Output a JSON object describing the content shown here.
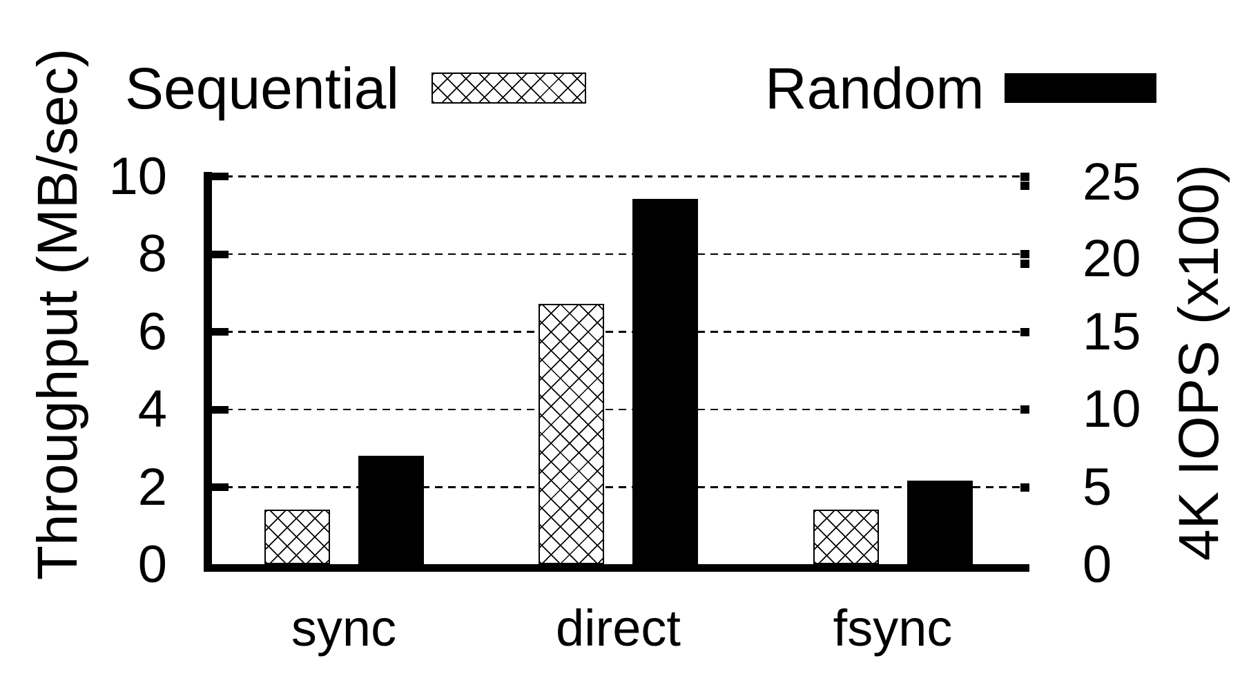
{
  "legend": {
    "items": [
      {
        "label": "Sequential",
        "swatch": "crosshatch"
      },
      {
        "label": "Random",
        "swatch": "solid-black"
      }
    ]
  },
  "y_left": {
    "label": "Throughput (MB/sec)",
    "ticks": [
      "10",
      "8",
      "6",
      "4",
      "2",
      "0"
    ]
  },
  "y_right": {
    "label": "4K IOPS (x100)",
    "ticks": [
      "25",
      "20",
      "15",
      "10",
      "5",
      "0"
    ]
  },
  "x": {
    "categories": [
      "sync",
      "direct",
      "fsync"
    ]
  },
  "chart_data": {
    "type": "bar",
    "categories": [
      "sync",
      "direct",
      "fsync"
    ],
    "series": [
      {
        "name": "Sequential",
        "axis": "left",
        "unit": "MB/sec",
        "pattern": "crosshatch",
        "values": [
          1.4,
          6.7,
          1.4
        ]
      },
      {
        "name": "Random",
        "axis": "right",
        "unit": "x100 IOPS",
        "pattern": "solid-black",
        "values": [
          7.0,
          23.5,
          5.4
        ]
      }
    ],
    "left_ylim": [
      0,
      10
    ],
    "right_ylim": [
      0,
      25
    ],
    "left_tick_interval": 2,
    "right_tick_interval": 5,
    "grid": "horizontal-dashed",
    "legend_position": "top",
    "colors": {
      "foreground": "#000000",
      "background": "#ffffff"
    }
  }
}
